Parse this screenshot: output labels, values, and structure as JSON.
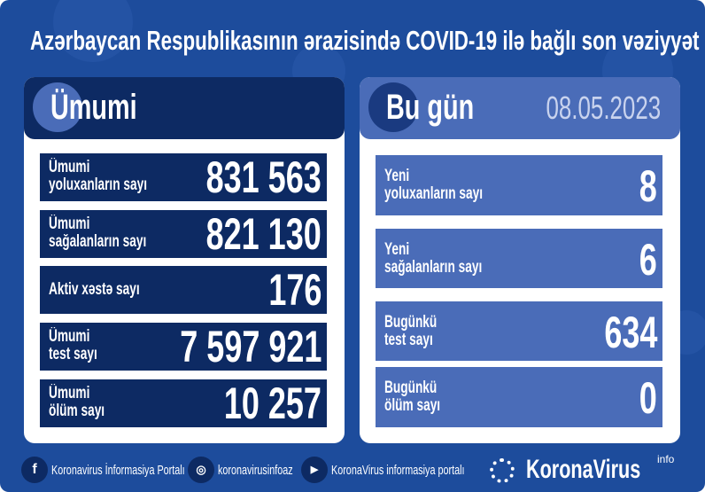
{
  "title": "Azərbaycan Respublikasının ərazisində COVID-19 ilə bağlı son vəziyyət",
  "colors": {
    "background": "#1d4c9c",
    "left_panel": "#0d2a63",
    "right_panel": "#4a6cb8",
    "value_text": "#ffffff"
  },
  "left": {
    "header": "Ümumi",
    "rows": [
      {
        "line1": "Ümumi",
        "line2": "yoluxanların sayı",
        "value": "831 563"
      },
      {
        "line1": "Ümumi",
        "line2": "sağalanların sayı",
        "value": "821 130"
      },
      {
        "line1": "Aktiv xəstə sayı",
        "line2": "",
        "value": "176"
      },
      {
        "line1": "Ümumi",
        "line2": "test sayı",
        "value": "7 597 921"
      },
      {
        "line1": "Ümumi",
        "line2": "ölüm sayı",
        "value": "10 257"
      }
    ]
  },
  "right": {
    "header": "Bu gün",
    "date": "08.05.2023",
    "rows": [
      {
        "line1": "Yeni",
        "line2": "yoluxanların sayı",
        "value": "8"
      },
      {
        "line1": "Yeni",
        "line2": "sağalanların sayı",
        "value": "6"
      },
      {
        "line1": "Bugünkü",
        "line2": "test sayı",
        "value": "634"
      },
      {
        "line1": "Bugünkü",
        "line2": "ölüm sayı",
        "value": "0"
      }
    ]
  },
  "footer": {
    "facebook": {
      "icon": "facebook-icon",
      "label": "Koronavirus İnformasiya Portalı"
    },
    "instagram": {
      "icon": "instagram-icon",
      "label": "koronavirusinfoaz"
    },
    "youtube": {
      "icon": "youtube-icon",
      "label": "KoronaVirus informasiya portalı"
    },
    "logo": "KoronaVirus",
    "logo_suffix": "info"
  }
}
